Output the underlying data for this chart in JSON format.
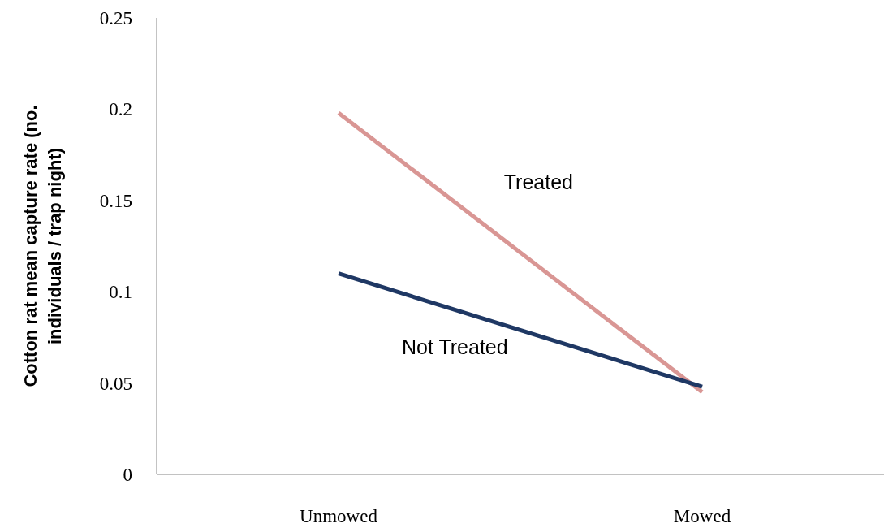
{
  "chart_data": {
    "type": "line",
    "ylabel": "Cotton rat mean capture rate (no. individuals / trap night)",
    "categories": [
      "Unmowed",
      "Mowed"
    ],
    "series": [
      {
        "name": "Treated",
        "color": "#d99694",
        "values": [
          0.198,
          0.045
        ]
      },
      {
        "name": "Not Treated",
        "color": "#1f3864",
        "values": [
          0.11,
          0.048
        ]
      }
    ],
    "ylim": [
      0,
      0.25
    ],
    "yticks": [
      0,
      0.05,
      0.1,
      0.15,
      0.2,
      0.25
    ],
    "grid": false,
    "marker": "none",
    "line_style": "solid"
  }
}
